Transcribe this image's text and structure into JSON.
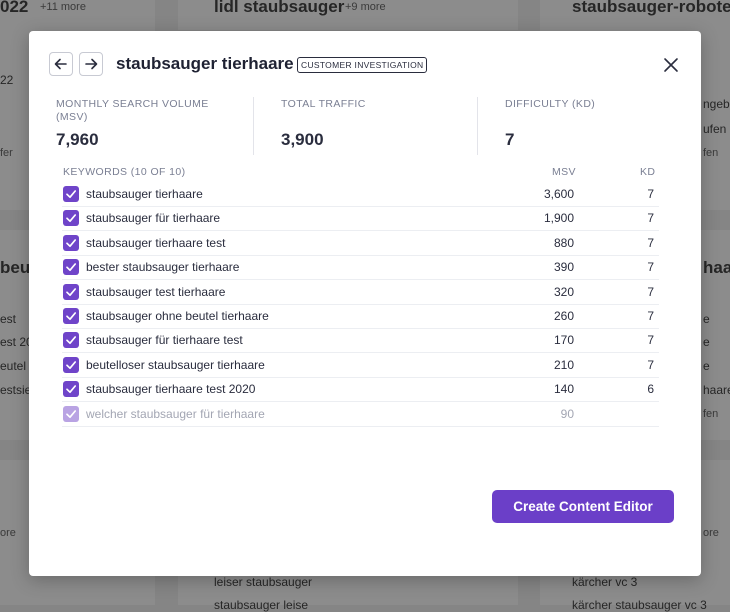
{
  "background": {
    "fragments": [
      "022",
      "+11 more",
      "lidl staubsauger",
      "+9 more",
      "staubsauger-roboter",
      "22",
      "fer",
      "beu",
      "est",
      "est 20",
      "eutel",
      "estsie",
      "ore",
      "ngebot",
      "ufen",
      "fen",
      "haa",
      "e",
      "e",
      "e",
      "haare",
      "fen",
      "ore",
      "leiser staubsauger",
      "kärcher vc 3",
      "staubsauger leise",
      "kärcher staubsauger vc 3"
    ]
  },
  "modal": {
    "title": "staubsauger tierhaare",
    "badge": "CUSTOMER INVESTIGATION",
    "stats": [
      {
        "label": "MONTHLY SEARCH VOLUME (MSV)",
        "value": "7,960"
      },
      {
        "label": "TOTAL TRAFFIC",
        "value": "3,900"
      },
      {
        "label": "DIFFICULTY (KD)",
        "value": "7"
      }
    ],
    "table": {
      "headers": [
        "KEYWORDS (10 OF 10)",
        "MSV",
        "KD"
      ],
      "rows": [
        {
          "keyword": "staubsauger tierhaare",
          "msv": "3,600",
          "kd": "7"
        },
        {
          "keyword": "staubsauger für tierhaare",
          "msv": "1,900",
          "kd": "7"
        },
        {
          "keyword": "staubsauger tierhaare test",
          "msv": "880",
          "kd": "7"
        },
        {
          "keyword": "bester staubsauger tierhaare",
          "msv": "390",
          "kd": "7"
        },
        {
          "keyword": "staubsauger test tierhaare",
          "msv": "320",
          "kd": "7"
        },
        {
          "keyword": "staubsauger ohne beutel tierhaare",
          "msv": "260",
          "kd": "7"
        },
        {
          "keyword": "staubsauger für tierhaare test",
          "msv": "170",
          "kd": "7"
        },
        {
          "keyword": "beutelloser staubsauger tierhaare",
          "msv": "210",
          "kd": "7"
        },
        {
          "keyword": "staubsauger tierhaare test 2020",
          "msv": "140",
          "kd": "6"
        },
        {
          "keyword": "welcher staubsauger für tierhaare",
          "msv": "90"
        }
      ]
    },
    "button": "Create Content Editor"
  }
}
